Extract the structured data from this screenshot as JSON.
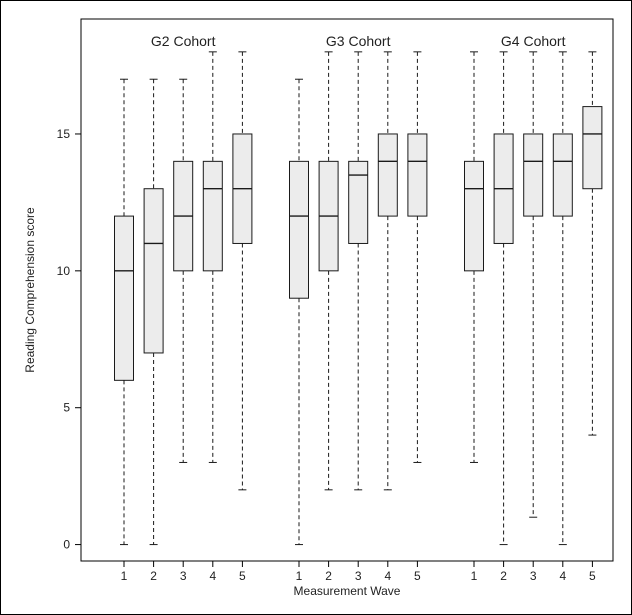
{
  "chart_data": {
    "type": "boxplot",
    "title": "",
    "xlabel": "Measurement Wave",
    "ylabel": "Reading Comprehension score",
    "ylim": [
      -0.6,
      19.2
    ],
    "yticks": [
      0,
      5,
      10,
      15
    ],
    "grid": false,
    "panels": [
      {
        "label": "G2 Cohort",
        "boxes": [
          {
            "wave": "1",
            "min": 0,
            "q1": 6,
            "median": 10,
            "q3": 12,
            "max": 17
          },
          {
            "wave": "2",
            "min": 0,
            "q1": 7,
            "median": 11,
            "q3": 13,
            "max": 17
          },
          {
            "wave": "3",
            "min": 3,
            "q1": 10,
            "median": 12,
            "q3": 14,
            "max": 17
          },
          {
            "wave": "4",
            "min": 3,
            "q1": 10,
            "median": 13,
            "q3": 14,
            "max": 18
          },
          {
            "wave": "5",
            "min": 2,
            "q1": 11,
            "median": 13,
            "q3": 15,
            "max": 18
          }
        ]
      },
      {
        "label": "G3 Cohort",
        "boxes": [
          {
            "wave": "1",
            "min": 0,
            "q1": 9,
            "median": 12,
            "q3": 14,
            "max": 17
          },
          {
            "wave": "2",
            "min": 2,
            "q1": 10,
            "median": 12,
            "q3": 14,
            "max": 18
          },
          {
            "wave": "3",
            "min": 2,
            "q1": 11,
            "median": 13.5,
            "q3": 14,
            "max": 18
          },
          {
            "wave": "4",
            "min": 2,
            "q1": 12,
            "median": 14,
            "q3": 15,
            "max": 18
          },
          {
            "wave": "5",
            "min": 3,
            "q1": 12,
            "median": 14,
            "q3": 15,
            "max": 18
          }
        ]
      },
      {
        "label": "G4 Cohort",
        "boxes": [
          {
            "wave": "1",
            "min": 3,
            "q1": 10,
            "median": 13,
            "q3": 14,
            "max": 18
          },
          {
            "wave": "2",
            "min": 0,
            "q1": 11,
            "median": 13,
            "q3": 15,
            "max": 18
          },
          {
            "wave": "3",
            "min": 1,
            "q1": 12,
            "median": 14,
            "q3": 15,
            "max": 18
          },
          {
            "wave": "4",
            "min": 0,
            "q1": 12,
            "median": 14,
            "q3": 15,
            "max": 18
          },
          {
            "wave": "5",
            "min": 4,
            "q1": 13,
            "median": 15,
            "q3": 16,
            "max": 18
          }
        ]
      }
    ],
    "colors": {
      "box_fill": "#ececec",
      "stroke": "#1a1a1a"
    }
  }
}
